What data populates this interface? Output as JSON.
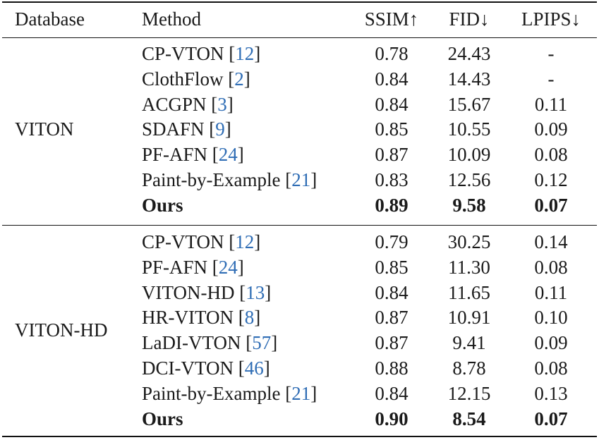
{
  "header": {
    "database": "Database",
    "method": "Method",
    "ssim": "SSIM↑",
    "fid": "FID↓",
    "lpips": "LPIPS↓"
  },
  "groups": [
    {
      "database": "VITON",
      "rows": [
        {
          "method": "CP-VTON",
          "ref": "12",
          "ssim": "0.78",
          "fid": "24.43",
          "lpips": "-"
        },
        {
          "method": "ClothFlow",
          "ref": "2",
          "ssim": "0.84",
          "fid": "14.43",
          "lpips": "-"
        },
        {
          "method": "ACGPN",
          "ref": "3",
          "ssim": "0.84",
          "fid": "15.67",
          "lpips": "0.11"
        },
        {
          "method": "SDAFN",
          "ref": "9",
          "ssim": "0.85",
          "fid": "10.55",
          "lpips": "0.09"
        },
        {
          "method": "PF-AFN",
          "ref": "24",
          "ssim": "0.87",
          "fid": "10.09",
          "lpips": "0.08"
        },
        {
          "method": "Paint-by-Example",
          "ref": "21",
          "ssim": "0.83",
          "fid": "12.56",
          "lpips": "0.12"
        },
        {
          "method": "Ours",
          "ref": "",
          "ssim": "0.89",
          "fid": "9.58",
          "lpips": "0.07",
          "bold": true
        }
      ]
    },
    {
      "database": "VITON-HD",
      "rows": [
        {
          "method": "CP-VTON",
          "ref": "12",
          "ssim": "0.79",
          "fid": "30.25",
          "lpips": "0.14"
        },
        {
          "method": "PF-AFN",
          "ref": "24",
          "ssim": "0.85",
          "fid": "11.30",
          "lpips": "0.08"
        },
        {
          "method": "VITON-HD",
          "ref": "13",
          "ssim": "0.84",
          "fid": "11.65",
          "lpips": "0.11"
        },
        {
          "method": "HR-VITON",
          "ref": "8",
          "ssim": "0.87",
          "fid": "10.91",
          "lpips": "0.10"
        },
        {
          "method": "LaDI-VTON",
          "ref": "57",
          "ssim": "0.87",
          "fid": "9.41",
          "lpips": "0.09"
        },
        {
          "method": "DCI-VTON",
          "ref": "46",
          "ssim": "0.88",
          "fid": "8.78",
          "lpips": "0.08"
        },
        {
          "method": "Paint-by-Example",
          "ref": "21",
          "ssim": "0.84",
          "fid": "12.15",
          "lpips": "0.13"
        },
        {
          "method": "Ours",
          "ref": "",
          "ssim": "0.90",
          "fid": "8.54",
          "lpips": "0.07",
          "bold": true
        }
      ]
    }
  ]
}
